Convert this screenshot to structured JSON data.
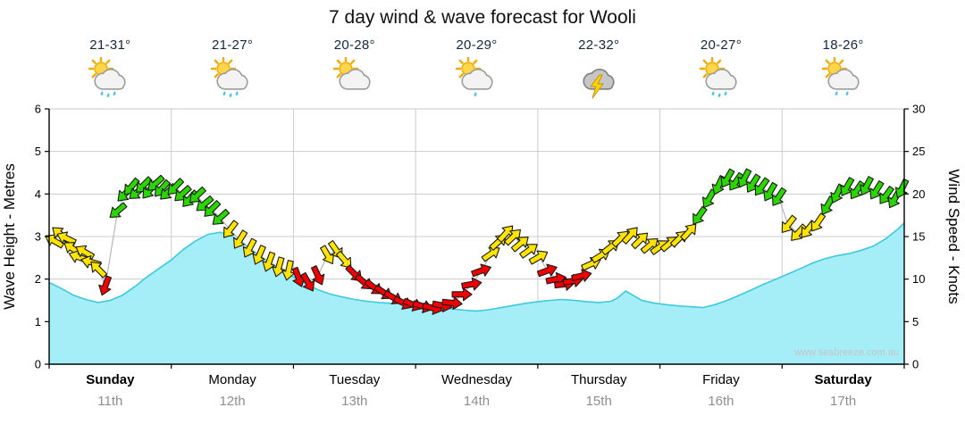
{
  "title": "7 day wind & wave forecast for Wooli",
  "watermark": "www.seabreeze.com.au",
  "axes": {
    "left_label": "Wave Height - Metres",
    "right_label": "Wind Speed - Knots",
    "left_ticks": [
      0,
      1,
      2,
      3,
      4,
      5,
      6
    ],
    "right_ticks": [
      0,
      5,
      10,
      15,
      20,
      25,
      30
    ]
  },
  "days": [
    {
      "name": "Sunday",
      "date": "11th",
      "temp": "21-31°",
      "icon": "sun-cloud-rain",
      "drops": 3,
      "bold": true
    },
    {
      "name": "Monday",
      "date": "12th",
      "temp": "21-27°",
      "icon": "sun-cloud-rain",
      "drops": 3,
      "bold": false
    },
    {
      "name": "Tuesday",
      "date": "13th",
      "temp": "20-28°",
      "icon": "sun-cloud",
      "drops": 0,
      "bold": false
    },
    {
      "name": "Wednesday",
      "date": "14th",
      "temp": "20-29°",
      "icon": "sun-cloud-rain",
      "drops": 1,
      "bold": false
    },
    {
      "name": "Thursday",
      "date": "15th",
      "temp": "22-32°",
      "icon": "storm",
      "drops": 0,
      "bold": false
    },
    {
      "name": "Friday",
      "date": "16th",
      "temp": "20-27°",
      "icon": "sun-cloud-rain",
      "drops": 3,
      "bold": false
    },
    {
      "name": "Saturday",
      "date": "17th",
      "temp": "18-26°",
      "icon": "sun-cloud-rain",
      "drops": 2,
      "bold": true
    }
  ],
  "chart_data": {
    "type": "area",
    "title": "7 day wind & wave forecast for Wooli",
    "grid": true,
    "legend": "none",
    "x_categories": [
      "Sunday 11th",
      "Monday 12th",
      "Tuesday 13th",
      "Wednesday 14th",
      "Thursday 15th",
      "Friday 16th",
      "Saturday 17th"
    ],
    "x_range_days": [
      0,
      7
    ],
    "wave": {
      "label": "Wave Height - Metres",
      "unit": "m",
      "ylim": [
        0,
        6
      ],
      "points": [
        [
          0,
          1.92
        ],
        [
          0.1,
          1.78
        ],
        [
          0.2,
          1.62
        ],
        [
          0.3,
          1.52
        ],
        [
          0.4,
          1.45
        ],
        [
          0.5,
          1.5
        ],
        [
          0.6,
          1.62
        ],
        [
          0.7,
          1.82
        ],
        [
          0.8,
          2.05
        ],
        [
          0.9,
          2.25
        ],
        [
          1,
          2.45
        ],
        [
          1.1,
          2.7
        ],
        [
          1.2,
          2.9
        ],
        [
          1.3,
          3.05
        ],
        [
          1.4,
          3.1
        ],
        [
          1.5,
          3
        ],
        [
          1.6,
          2.82
        ],
        [
          1.7,
          2.6
        ],
        [
          1.8,
          2.4
        ],
        [
          1.9,
          2.22
        ],
        [
          2,
          2.05
        ],
        [
          2.1,
          1.9
        ],
        [
          2.2,
          1.75
        ],
        [
          2.3,
          1.65
        ],
        [
          2.4,
          1.58
        ],
        [
          2.5,
          1.52
        ],
        [
          2.6,
          1.48
        ],
        [
          2.7,
          1.45
        ],
        [
          2.8,
          1.43
        ],
        [
          2.9,
          1.42
        ],
        [
          3,
          1.4
        ],
        [
          3.1,
          1.37
        ],
        [
          3.2,
          1.33
        ],
        [
          3.3,
          1.3
        ],
        [
          3.4,
          1.27
        ],
        [
          3.5,
          1.25
        ],
        [
          3.6,
          1.28
        ],
        [
          3.7,
          1.33
        ],
        [
          3.8,
          1.38
        ],
        [
          3.9,
          1.43
        ],
        [
          4,
          1.47
        ],
        [
          4.1,
          1.5
        ],
        [
          4.2,
          1.52
        ],
        [
          4.3,
          1.5
        ],
        [
          4.4,
          1.47
        ],
        [
          4.5,
          1.45
        ],
        [
          4.6,
          1.48
        ],
        [
          4.65,
          1.55
        ],
        [
          4.72,
          1.72
        ],
        [
          4.78,
          1.62
        ],
        [
          4.85,
          1.5
        ],
        [
          4.95,
          1.44
        ],
        [
          5.05,
          1.4
        ],
        [
          5.15,
          1.37
        ],
        [
          5.25,
          1.35
        ],
        [
          5.35,
          1.33
        ],
        [
          5.45,
          1.4
        ],
        [
          5.55,
          1.5
        ],
        [
          5.65,
          1.62
        ],
        [
          5.75,
          1.75
        ],
        [
          5.85,
          1.88
        ],
        [
          5.95,
          2
        ],
        [
          6.05,
          2.12
        ],
        [
          6.15,
          2.25
        ],
        [
          6.25,
          2.38
        ],
        [
          6.35,
          2.48
        ],
        [
          6.45,
          2.55
        ],
        [
          6.55,
          2.6
        ],
        [
          6.65,
          2.68
        ],
        [
          6.75,
          2.78
        ],
        [
          6.85,
          2.95
        ],
        [
          6.95,
          3.18
        ],
        [
          7,
          3.32
        ]
      ]
    },
    "wind": {
      "label": "Wind Speed - Knots",
      "unit": "knots",
      "ylim": [
        0,
        30
      ],
      "arrow_format": [
        "day_position",
        "knots",
        "direction_deg",
        "color"
      ],
      "arrows": [
        [
          0.04,
          14.5,
          300,
          "yellow"
        ],
        [
          0.09,
          15.3,
          310,
          "yellow"
        ],
        [
          0.14,
          14.8,
          295,
          "yellow"
        ],
        [
          0.19,
          13.6,
          305,
          "yellow"
        ],
        [
          0.24,
          12.6,
          290,
          "yellow"
        ],
        [
          0.29,
          13.2,
          300,
          "yellow"
        ],
        [
          0.34,
          12.0,
          285,
          "yellow"
        ],
        [
          0.4,
          11.2,
          315,
          "yellow"
        ],
        [
          0.46,
          9.2,
          200,
          "red"
        ],
        [
          0.56,
          18.0,
          230,
          "green"
        ],
        [
          0.62,
          20.0,
          225,
          "green"
        ],
        [
          0.67,
          20.8,
          220,
          "green"
        ],
        [
          0.72,
          20.2,
          230,
          "green"
        ],
        [
          0.77,
          21.0,
          225,
          "green"
        ],
        [
          0.82,
          20.4,
          220,
          "green"
        ],
        [
          0.87,
          21.2,
          228,
          "green"
        ],
        [
          0.92,
          20.6,
          222,
          "green"
        ],
        [
          0.97,
          20.2,
          226,
          "green"
        ],
        [
          1.03,
          20.8,
          224,
          "green"
        ],
        [
          1.09,
          20.0,
          228,
          "green"
        ],
        [
          1.15,
          19.4,
          222,
          "green"
        ],
        [
          1.21,
          19.8,
          226,
          "green"
        ],
        [
          1.27,
          18.8,
          230,
          "green"
        ],
        [
          1.33,
          18.2,
          225,
          "green"
        ],
        [
          1.4,
          17.2,
          228,
          "green"
        ],
        [
          1.48,
          15.8,
          218,
          "yellow"
        ],
        [
          1.56,
          14.6,
          212,
          "yellow"
        ],
        [
          1.64,
          13.6,
          208,
          "yellow"
        ],
        [
          1.72,
          12.8,
          204,
          "yellow"
        ],
        [
          1.8,
          12.0,
          200,
          "yellow"
        ],
        [
          1.88,
          11.4,
          196,
          "yellow"
        ],
        [
          1.96,
          11.0,
          192,
          "yellow"
        ],
        [
          2.04,
          10.2,
          160,
          "red"
        ],
        [
          2.12,
          9.6,
          150,
          "red"
        ],
        [
          2.2,
          10.4,
          155,
          "red"
        ],
        [
          2.28,
          12.8,
          150,
          "yellow"
        ],
        [
          2.35,
          13.4,
          145,
          "yellow"
        ],
        [
          2.42,
          12.2,
          140,
          "yellow"
        ],
        [
          2.5,
          10.6,
          135,
          "red"
        ],
        [
          2.58,
          9.6,
          130,
          "red"
        ],
        [
          2.66,
          9.0,
          128,
          "red"
        ],
        [
          2.74,
          8.4,
          124,
          "red"
        ],
        [
          2.82,
          7.8,
          120,
          "red"
        ],
        [
          2.9,
          7.2,
          116,
          "red"
        ],
        [
          2.98,
          7.0,
          112,
          "red"
        ],
        [
          3.06,
          6.8,
          108,
          "red"
        ],
        [
          3.14,
          6.6,
          104,
          "red"
        ],
        [
          3.22,
          6.9,
          100,
          "red"
        ],
        [
          3.3,
          7.2,
          96,
          "red"
        ],
        [
          3.38,
          8.2,
          90,
          "red"
        ],
        [
          3.46,
          9.4,
          80,
          "red"
        ],
        [
          3.54,
          11.0,
          70,
          "red"
        ],
        [
          3.62,
          13.0,
          55,
          "yellow"
        ],
        [
          3.68,
          14.4,
          48,
          "yellow"
        ],
        [
          3.74,
          15.4,
          42,
          "yellow"
        ],
        [
          3.8,
          15.0,
          46,
          "yellow"
        ],
        [
          3.86,
          14.2,
          50,
          "yellow"
        ],
        [
          3.93,
          13.4,
          54,
          "yellow"
        ],
        [
          4.01,
          12.6,
          60,
          "yellow"
        ],
        [
          4.08,
          11.0,
          70,
          "red"
        ],
        [
          4.15,
          10.0,
          78,
          "red"
        ],
        [
          4.22,
          9.4,
          84,
          "red"
        ],
        [
          4.29,
          9.8,
          80,
          "red"
        ],
        [
          4.36,
          10.4,
          76,
          "red"
        ],
        [
          4.44,
          11.8,
          66,
          "yellow"
        ],
        [
          4.52,
          12.8,
          58,
          "yellow"
        ],
        [
          4.6,
          13.8,
          52,
          "yellow"
        ],
        [
          4.68,
          14.8,
          46,
          "yellow"
        ],
        [
          4.76,
          15.2,
          42,
          "yellow"
        ],
        [
          4.84,
          14.6,
          46,
          "yellow"
        ],
        [
          4.92,
          14.0,
          50,
          "yellow"
        ],
        [
          5.0,
          13.8,
          54,
          "yellow"
        ],
        [
          5.08,
          14.2,
          50,
          "yellow"
        ],
        [
          5.16,
          14.8,
          46,
          "yellow"
        ],
        [
          5.24,
          15.6,
          42,
          "yellow"
        ],
        [
          5.32,
          17.4,
          215,
          "green"
        ],
        [
          5.4,
          19.4,
          210,
          "green"
        ],
        [
          5.48,
          21.0,
          205,
          "green"
        ],
        [
          5.55,
          21.8,
          210,
          "green"
        ],
        [
          5.62,
          21.4,
          215,
          "green"
        ],
        [
          5.69,
          21.8,
          208,
          "green"
        ],
        [
          5.76,
          21.2,
          212,
          "green"
        ],
        [
          5.83,
          20.8,
          216,
          "green"
        ],
        [
          5.9,
          20.2,
          210,
          "green"
        ],
        [
          5.97,
          19.6,
          214,
          "green"
        ],
        [
          6.05,
          16.4,
          218,
          "yellow"
        ],
        [
          6.13,
          15.4,
          222,
          "yellow"
        ],
        [
          6.21,
          15.8,
          218,
          "yellow"
        ],
        [
          6.29,
          16.6,
          214,
          "yellow"
        ],
        [
          6.37,
          18.6,
          210,
          "green"
        ],
        [
          6.45,
          20.0,
          206,
          "green"
        ],
        [
          6.53,
          20.8,
          210,
          "green"
        ],
        [
          6.61,
          20.4,
          214,
          "green"
        ],
        [
          6.69,
          20.9,
          208,
          "green"
        ],
        [
          6.77,
          20.4,
          212,
          "green"
        ],
        [
          6.85,
          19.8,
          216,
          "green"
        ],
        [
          6.92,
          19.4,
          210,
          "green"
        ],
        [
          6.98,
          20.6,
          206,
          "green"
        ]
      ]
    },
    "colors": {
      "wave_fill": "#A6EEF7",
      "wave_stroke": "#3FC8DE",
      "arrow_yellow": "#FFE400",
      "arrow_green": "#2BD600",
      "arrow_red": "#F00000",
      "grid": "#CCCCCC",
      "connector": "#ABABAB",
      "axis": "#000000",
      "top_border": "#C9C9C9",
      "watermark": "#C4C4C4"
    }
  }
}
